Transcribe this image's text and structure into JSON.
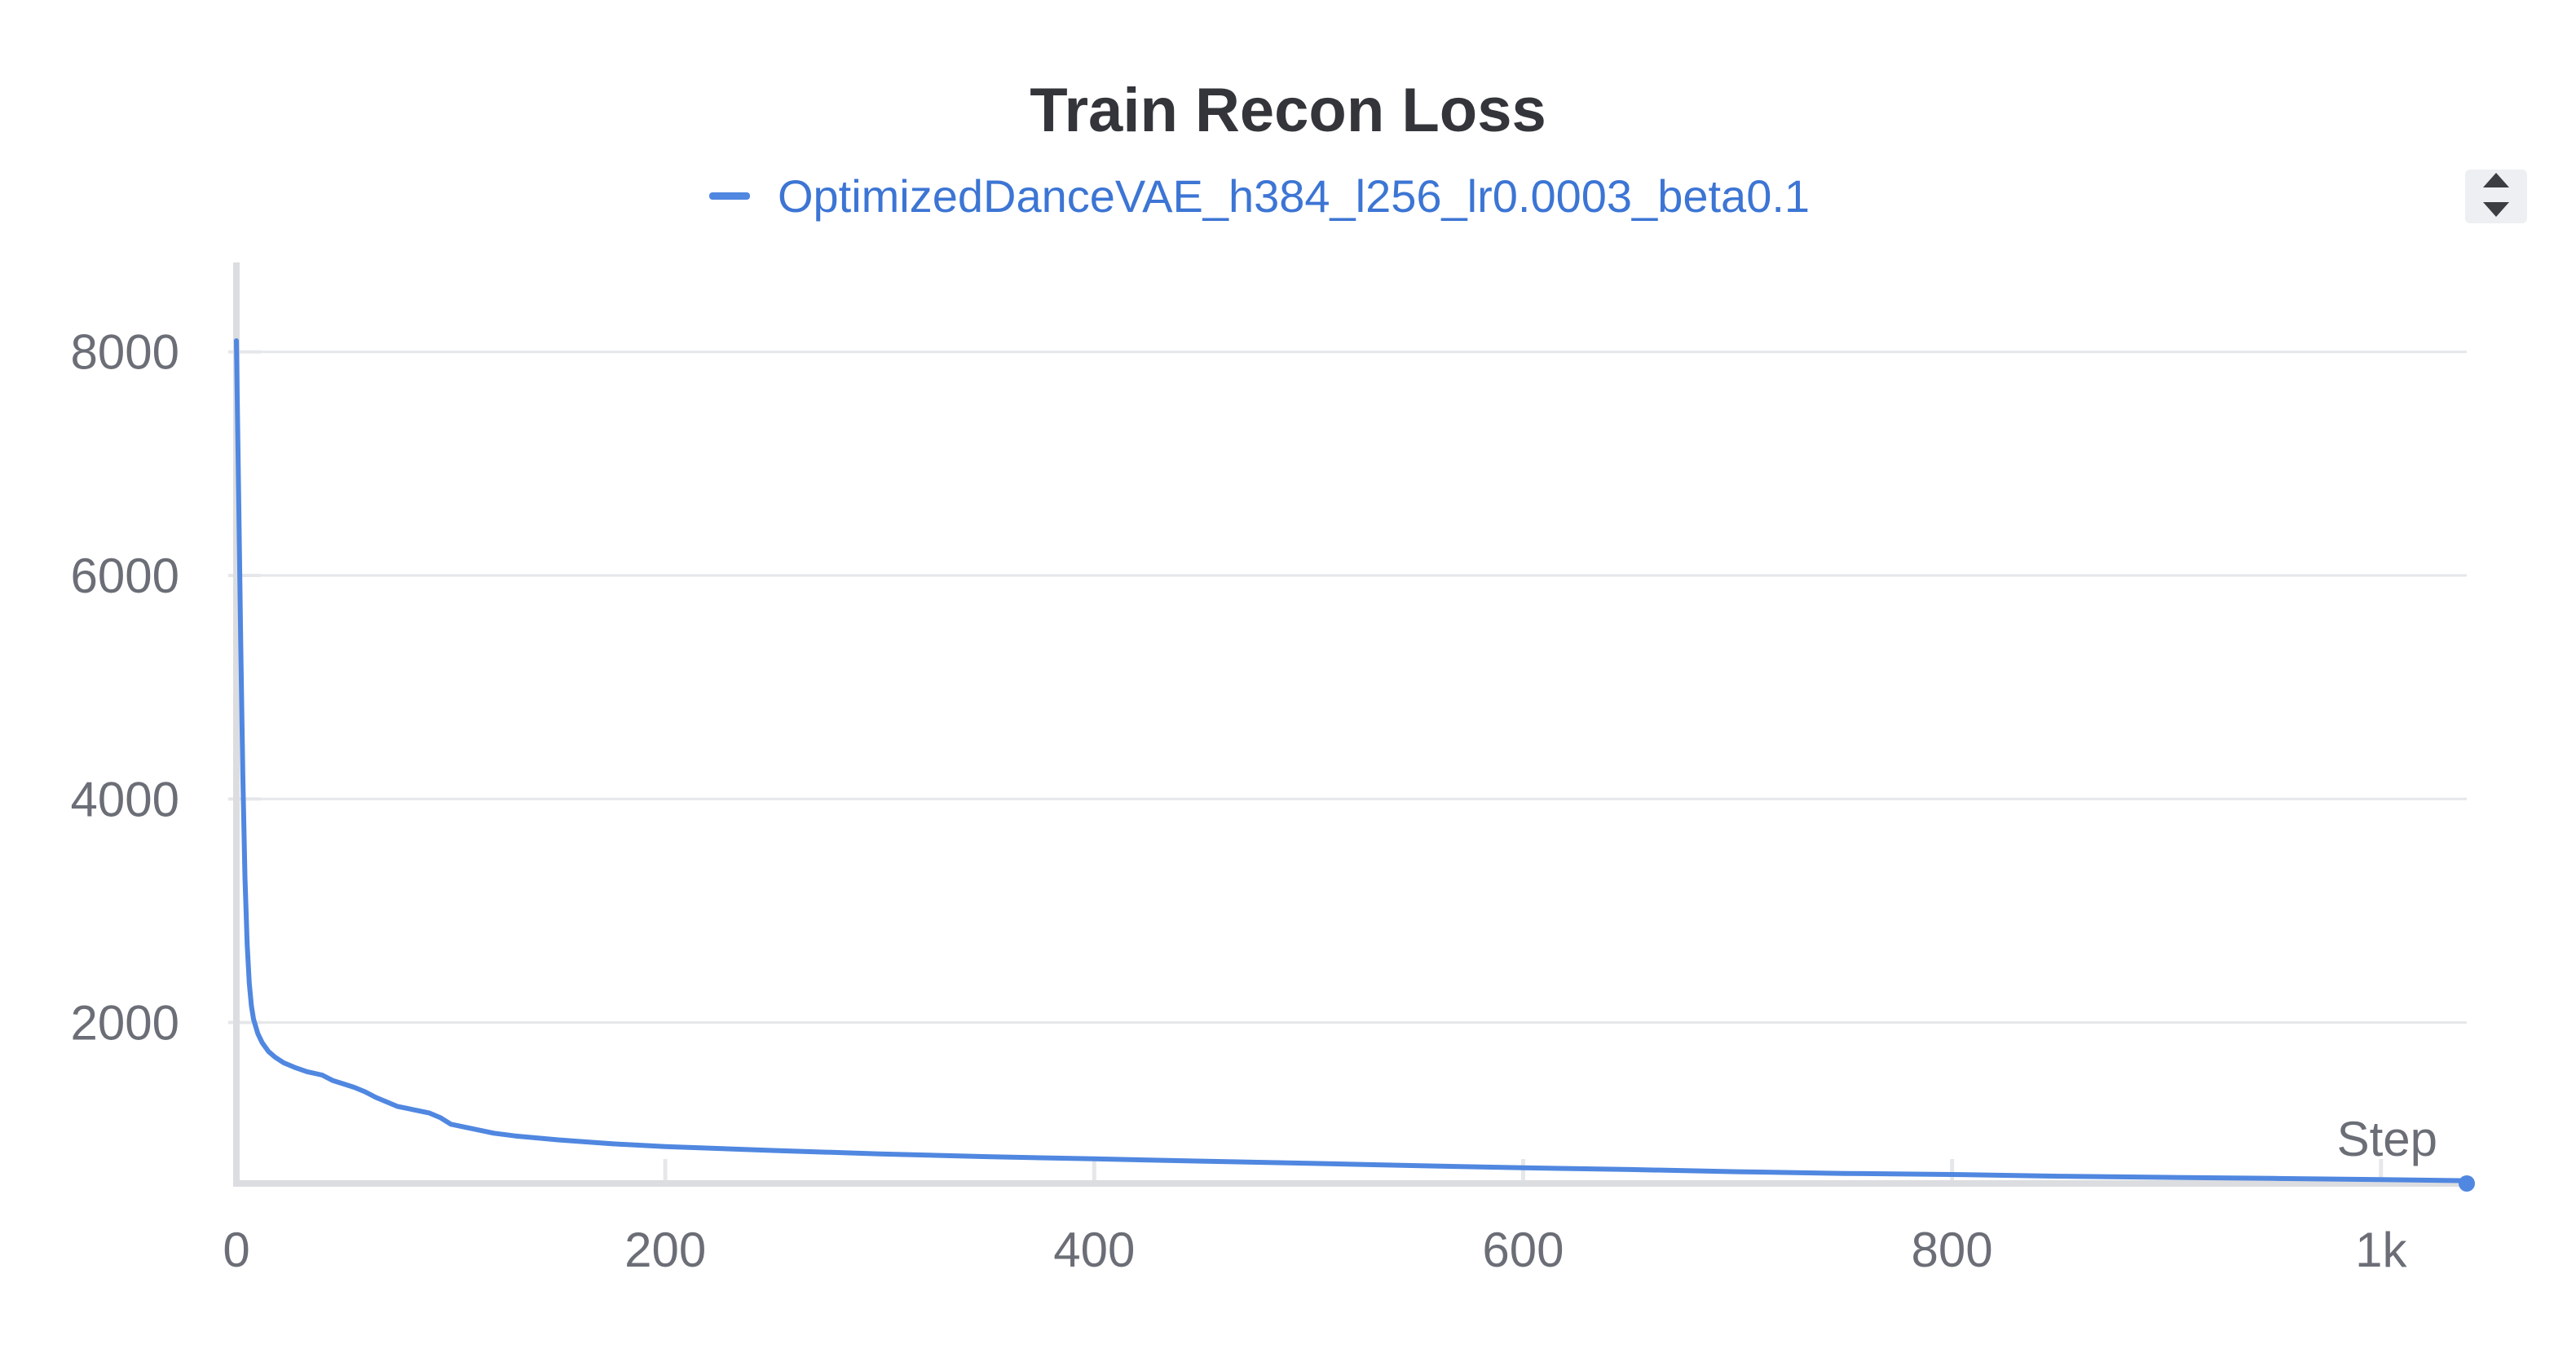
{
  "chart_data": {
    "type": "line",
    "title": "Train Recon Loss",
    "xlabel": "Step",
    "ylabel": "",
    "xlim": [
      0,
      1040
    ],
    "ylim": [
      560,
      8800
    ],
    "x_ticks": [
      {
        "value": 0,
        "label": "0"
      },
      {
        "value": 200,
        "label": "200"
      },
      {
        "value": 400,
        "label": "400"
      },
      {
        "value": 600,
        "label": "600"
      },
      {
        "value": 800,
        "label": "800"
      },
      {
        "value": 1000,
        "label": "1k"
      }
    ],
    "y_ticks": [
      {
        "value": 2000,
        "label": "2000"
      },
      {
        "value": 4000,
        "label": "4000"
      },
      {
        "value": 6000,
        "label": "6000"
      },
      {
        "value": 8000,
        "label": "8000"
      }
    ],
    "grid": true,
    "legend_position": "top-center",
    "series": [
      {
        "name": "OptimizedDanceVAE_h384_l256_lr0.0003_beta0.1",
        "color": "#5087e0",
        "x": [
          0,
          1,
          2,
          3,
          4,
          5,
          6,
          7,
          8,
          10,
          12,
          15,
          18,
          22,
          27,
          33,
          40,
          45,
          50,
          55,
          60,
          65,
          70,
          75,
          80,
          90,
          95,
          100,
          110,
          120,
          130,
          150,
          175,
          200,
          250,
          300,
          350,
          400,
          450,
          500,
          550,
          600,
          650,
          700,
          750,
          800,
          850,
          900,
          950,
          1000,
          1040
        ],
        "y": [
          8100,
          6800,
          5400,
          4200,
          3300,
          2700,
          2350,
          2150,
          2030,
          1900,
          1820,
          1740,
          1690,
          1640,
          1600,
          1560,
          1530,
          1480,
          1450,
          1420,
          1380,
          1330,
          1290,
          1250,
          1230,
          1190,
          1150,
          1090,
          1050,
          1010,
          985,
          950,
          915,
          890,
          855,
          825,
          800,
          780,
          760,
          740,
          720,
          700,
          685,
          665,
          650,
          640,
          625,
          615,
          605,
          595,
          585
        ]
      }
    ]
  },
  "ui": {
    "scroll_up_icon": "triangle-up",
    "scroll_down_icon": "triangle-down"
  }
}
